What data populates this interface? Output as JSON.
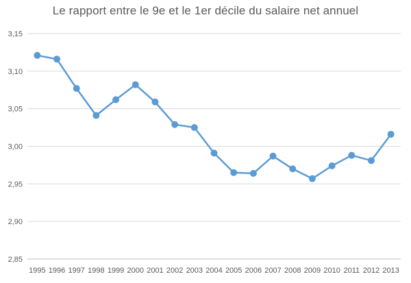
{
  "chart_data": {
    "type": "line",
    "title": "Le rapport entre le 9e et le 1er décile  du salaire net annuel",
    "xlabel": "",
    "ylabel": "",
    "x": [
      "1995",
      "1996",
      "1997",
      "1998",
      "1999",
      "2000",
      "2001",
      "2002",
      "2003",
      "2004",
      "2005",
      "2006",
      "2007",
      "2008",
      "2009",
      "2010",
      "2011",
      "2012",
      "2013"
    ],
    "series": [
      {
        "values": [
          3.121,
          3.116,
          3.077,
          3.041,
          3.062,
          3.082,
          3.059,
          3.029,
          3.025,
          2.991,
          2.965,
          2.964,
          2.987,
          2.97,
          2.957,
          2.974,
          2.988,
          2.981,
          3.016
        ],
        "color": "#5B9BD5"
      }
    ],
    "ylim": [
      2.85,
      3.15
    ],
    "yticks": [
      2.85,
      2.9,
      2.95,
      3.0,
      3.05,
      3.1,
      3.15
    ],
    "ytick_labels": [
      "2,85",
      "2,90",
      "2,95",
      "3,00",
      "3,05",
      "3,10",
      "3,15"
    ],
    "grid": true,
    "gridline_color": "#d9d9d9",
    "axis_color": "#bfbfbf",
    "legend": "none"
  }
}
